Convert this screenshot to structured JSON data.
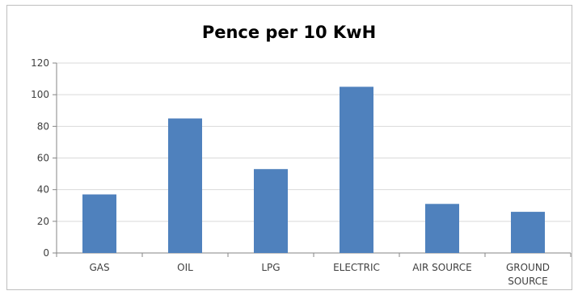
{
  "chart_data": {
    "type": "bar",
    "title": "Pence per 10 KwH",
    "categories": [
      "GAS",
      "OIL",
      "LPG",
      "ELECTRIC",
      "AIR SOURCE",
      "GROUND SOURCE"
    ],
    "category_lines": [
      [
        "GAS"
      ],
      [
        "OIL"
      ],
      [
        "LPG"
      ],
      [
        "ELECTRIC"
      ],
      [
        "AIR SOURCE"
      ],
      [
        "GROUND",
        "SOURCE"
      ]
    ],
    "values": [
      37,
      85,
      53,
      105,
      31,
      26
    ],
    "xlabel": "",
    "ylabel": "",
    "ylim": [
      0,
      120
    ],
    "yticks": [
      0,
      20,
      40,
      60,
      80,
      100,
      120
    ],
    "grid": true,
    "legend": "none",
    "bar_color": "#4f81bd",
    "grid_color": "#d9d9d9",
    "axis_color": "#868686"
  }
}
